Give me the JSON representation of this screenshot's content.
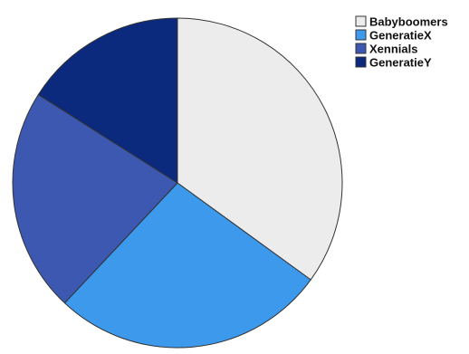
{
  "chart_data": {
    "type": "pie",
    "title": "",
    "start": "top",
    "direction": "clockwise",
    "legend_position": "top-right",
    "series": [
      {
        "name": "Babyboomers",
        "value": 35,
        "color": "#ececec"
      },
      {
        "name": "GeneratieX",
        "value": 27,
        "color": "#3c99ec"
      },
      {
        "name": "Xennials",
        "value": 22,
        "color": "#3c58b0"
      },
      {
        "name": "GeneratieY",
        "value": 16,
        "color": "#0b2a7e"
      }
    ]
  }
}
